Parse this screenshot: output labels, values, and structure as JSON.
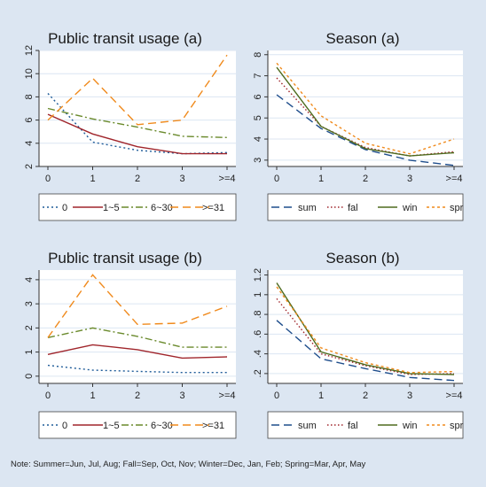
{
  "note": "Note: Summer=Jun, Jul, Aug; Fall=Sep, Oct, Nov; Winter=Dec, Jan, Feb; Spring=Mar, Apr, May",
  "colors": {
    "background": "#dce6f2",
    "plot_bg": "#ffffff",
    "grid": "#dce6f2"
  },
  "chart_data": [
    {
      "type": "line",
      "title": "Public transit usage (a)",
      "xlabel": "",
      "ylabel": "",
      "categories": [
        "0",
        "1",
        "2",
        "3",
        ">=4"
      ],
      "ylim": [
        2,
        12
      ],
      "yticks": [
        "2",
        "4",
        "6",
        "8",
        "10",
        "12"
      ],
      "ytick_values": [
        2,
        4,
        6,
        8,
        10,
        12
      ],
      "legend_position": "bottom",
      "series": [
        {
          "name": "0",
          "values": [
            8.3,
            4.1,
            3.4,
            3.1,
            3.2
          ],
          "color": "#1f5c99",
          "dash": "2,3"
        },
        {
          "name": "1~5",
          "values": [
            6.5,
            4.8,
            3.7,
            3.1,
            3.1
          ],
          "color": "#a0252b",
          "dash": ""
        },
        {
          "name": "6~30",
          "values": [
            7.0,
            6.1,
            5.4,
            4.6,
            4.5
          ],
          "color": "#6a8a2c",
          "dash": "8,3,2,3"
        },
        {
          "name": ">=31",
          "values": [
            6.0,
            9.6,
            5.6,
            6.0,
            11.6
          ],
          "color": "#f08a1c",
          "dash": "9,5"
        }
      ]
    },
    {
      "type": "line",
      "title": "Season (a)",
      "xlabel": "",
      "ylabel": "",
      "categories": [
        "0",
        "1",
        "2",
        "3",
        ">=4"
      ],
      "ylim": [
        2.7,
        8.2
      ],
      "yticks": [
        "3",
        "4",
        "5",
        "6",
        "7",
        "8"
      ],
      "ytick_values": [
        3,
        4,
        5,
        6,
        7,
        8
      ],
      "legend_position": "bottom",
      "series": [
        {
          "name": "sum",
          "values": [
            6.1,
            4.5,
            3.5,
            3.0,
            2.75
          ],
          "color": "#1f4e8c",
          "dash": "9,5"
        },
        {
          "name": "fal",
          "values": [
            6.9,
            4.6,
            3.6,
            3.2,
            3.4
          ],
          "color": "#a0252b",
          "dash": "1.5,2.5"
        },
        {
          "name": "win",
          "values": [
            7.4,
            4.6,
            3.55,
            3.2,
            3.35
          ],
          "color": "#4e6b1e",
          "dash": ""
        },
        {
          "name": "spr",
          "values": [
            7.6,
            5.1,
            3.8,
            3.3,
            4.0
          ],
          "color": "#f08a1c",
          "dash": "3,3"
        }
      ]
    },
    {
      "type": "line",
      "title": "Public transit usage (b)",
      "xlabel": "",
      "ylabel": "",
      "categories": [
        "0",
        "1",
        "2",
        "3",
        ">=4"
      ],
      "ylim": [
        -0.3,
        4.4
      ],
      "yticks": [
        "0",
        "1",
        "2",
        "3",
        "4"
      ],
      "ytick_values": [
        0,
        1,
        2,
        3,
        4
      ],
      "legend_position": "bottom",
      "series": [
        {
          "name": "0",
          "values": [
            0.45,
            0.25,
            0.2,
            0.15,
            0.15
          ],
          "color": "#1f5c99",
          "dash": "2,3"
        },
        {
          "name": "1~5",
          "values": [
            0.9,
            1.3,
            1.1,
            0.75,
            0.8
          ],
          "color": "#a0252b",
          "dash": ""
        },
        {
          "name": "6~30",
          "values": [
            1.6,
            2.0,
            1.65,
            1.2,
            1.2
          ],
          "color": "#6a8a2c",
          "dash": "8,3,2,3"
        },
        {
          "name": ">=31",
          "values": [
            1.6,
            4.2,
            2.15,
            2.2,
            2.9
          ],
          "color": "#f08a1c",
          "dash": "9,5"
        }
      ]
    },
    {
      "type": "line",
      "title": "Season (b)",
      "xlabel": "",
      "ylabel": "",
      "categories": [
        "0",
        "1",
        "2",
        "3",
        ">=4"
      ],
      "ylim": [
        0.1,
        1.25
      ],
      "yticks": [
        ".2",
        ".4",
        ".6",
        ".8",
        "1",
        "1.2"
      ],
      "ytick_values": [
        0.2,
        0.4,
        0.6,
        0.8,
        1.0,
        1.2
      ],
      "legend_position": "bottom",
      "series": [
        {
          "name": "sum",
          "values": [
            0.74,
            0.35,
            0.25,
            0.16,
            0.13
          ],
          "color": "#1f4e8c",
          "dash": "9,5"
        },
        {
          "name": "fal",
          "values": [
            0.96,
            0.4,
            0.28,
            0.19,
            0.2
          ],
          "color": "#a0252b",
          "dash": "1.5,2.5"
        },
        {
          "name": "win",
          "values": [
            1.12,
            0.42,
            0.29,
            0.2,
            0.19
          ],
          "color": "#4e6b1e",
          "dash": ""
        },
        {
          "name": "spr",
          "values": [
            1.08,
            0.46,
            0.31,
            0.21,
            0.22
          ],
          "color": "#f08a1c",
          "dash": "3,3"
        }
      ]
    }
  ]
}
